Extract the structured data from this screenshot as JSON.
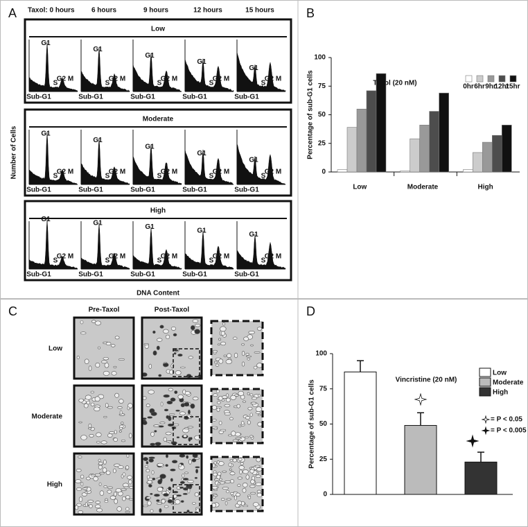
{
  "panel_labels": [
    "A",
    "B",
    "C",
    "D"
  ],
  "panel_a": {
    "time_labels": [
      "Taxol: 0 hours",
      "6 hours",
      "9 hours",
      "12 hours",
      "15 hours"
    ],
    "groups": [
      "Low",
      "Moderate",
      "High"
    ],
    "peak_labels": [
      "G1",
      "S",
      "G2 M",
      "Sub-G1"
    ],
    "y_label": "Number of Cells",
    "x_label": "DNA Content"
  },
  "panel_c": {
    "columns": [
      "Pre-Taxol",
      "Post-Taxol"
    ],
    "rows": [
      "Low",
      "Moderate",
      "High"
    ]
  },
  "chart_data": [
    {
      "type": "bar",
      "title": "Taxol (20 nM)",
      "y_label": "Percentage of sub-G1 cells",
      "categories": [
        "Low",
        "Moderate",
        "High"
      ],
      "series": [
        {
          "name": "0hr",
          "color": "#ffffff",
          "values": [
            2,
            1,
            2
          ]
        },
        {
          "name": "6hr",
          "color": "#cccccc",
          "values": [
            39,
            29,
            17
          ]
        },
        {
          "name": "9hr",
          "color": "#999999",
          "values": [
            55,
            41,
            26
          ]
        },
        {
          "name": "12hr",
          "color": "#4d4d4d",
          "values": [
            71,
            53,
            32
          ]
        },
        {
          "name": "15hr",
          "color": "#111111",
          "values": [
            86,
            69,
            41
          ]
        }
      ],
      "ylim": [
        0,
        100
      ],
      "yticks": [
        0,
        25,
        50,
        75,
        100
      ]
    },
    {
      "type": "bar",
      "title": "Vincristine (20 nM)",
      "y_label": "Percentage of sub-G1 cells",
      "categories": [
        "Low",
        "Moderate",
        "High"
      ],
      "values": [
        87,
        49,
        23
      ],
      "errors": [
        8,
        9,
        7
      ],
      "colors": [
        "#ffffff",
        "#bbbbbb",
        "#333333"
      ],
      "annotations": [
        "= P < 0.05",
        "= P < 0.005"
      ],
      "ylim": [
        0,
        100
      ],
      "yticks": [
        0,
        25,
        50,
        75,
        100
      ]
    }
  ]
}
